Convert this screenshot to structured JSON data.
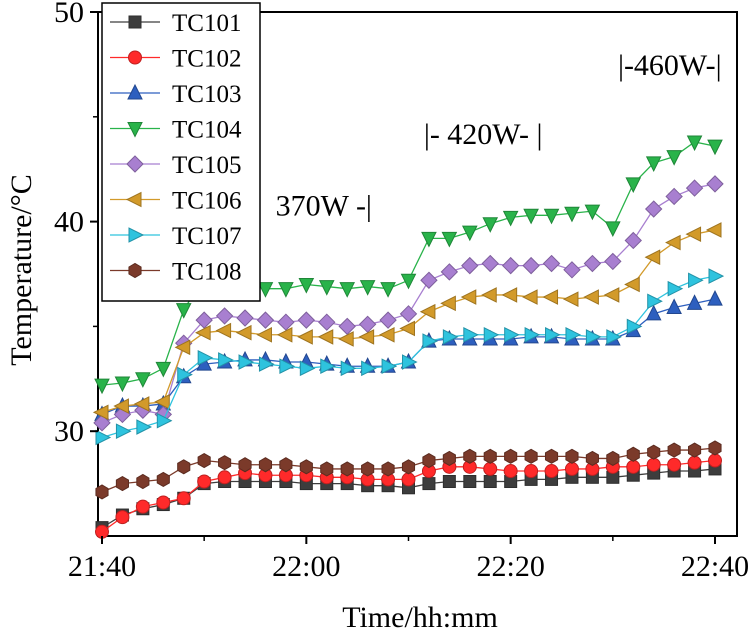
{
  "chart_data": {
    "type": "line",
    "title": "",
    "xlabel": "Time/hh:mm",
    "ylabel": "Temperature/°C",
    "xlim": [
      0,
      60
    ],
    "ylim": [
      25,
      50
    ],
    "x_ticks": [
      0,
      20,
      40,
      60
    ],
    "x_tick_labels": [
      "21:40",
      "22:00",
      "22:20",
      "22:40"
    ],
    "y_ticks": [
      30,
      40,
      50
    ],
    "y_tick_labels": [
      "30",
      "40",
      "50"
    ],
    "grid": false,
    "legend_position": "top-left",
    "x": [
      0,
      2,
      4,
      6,
      8,
      10,
      12,
      14,
      16,
      18,
      20,
      22,
      24,
      26,
      28,
      30,
      32,
      34,
      36,
      38,
      40,
      42,
      44,
      46,
      48,
      50,
      52,
      54,
      56,
      58,
      60
    ],
    "series": [
      {
        "name": "TC101",
        "marker": "square",
        "color": "#3d3d3d",
        "values": [
          25.4,
          26.0,
          26.3,
          26.5,
          26.8,
          27.5,
          27.6,
          27.6,
          27.6,
          27.6,
          27.5,
          27.5,
          27.5,
          27.4,
          27.4,
          27.3,
          27.5,
          27.6,
          27.6,
          27.6,
          27.6,
          27.7,
          27.7,
          27.8,
          27.8,
          27.8,
          27.9,
          28.0,
          28.1,
          28.1,
          28.2
        ]
      },
      {
        "name": "TC102",
        "marker": "circle",
        "color": "#ff2a2a",
        "values": [
          25.2,
          25.9,
          26.4,
          26.6,
          26.8,
          27.6,
          27.8,
          28.0,
          27.9,
          27.9,
          27.9,
          27.8,
          27.8,
          27.7,
          27.7,
          27.7,
          28.1,
          28.3,
          28.3,
          28.2,
          28.1,
          28.1,
          28.1,
          28.2,
          28.2,
          28.3,
          28.3,
          28.4,
          28.4,
          28.5,
          28.6
        ]
      },
      {
        "name": "TC103",
        "marker": "triangle-up",
        "color": "#2d5fbf",
        "values": [
          30.8,
          31.2,
          31.2,
          31.3,
          32.6,
          33.2,
          33.3,
          33.4,
          33.4,
          33.3,
          33.3,
          33.2,
          33.1,
          33.1,
          33.1,
          33.3,
          34.3,
          34.4,
          34.4,
          34.4,
          34.4,
          34.5,
          34.5,
          34.4,
          34.4,
          34.4,
          34.8,
          35.6,
          35.9,
          36.1,
          36.3
        ]
      },
      {
        "name": "TC104",
        "marker": "triangle-down",
        "color": "#29b34a",
        "values": [
          32.2,
          32.3,
          32.5,
          33.0,
          35.8,
          37.3,
          37.2,
          37.0,
          36.8,
          36.8,
          37.0,
          36.9,
          36.8,
          36.9,
          36.8,
          37.2,
          39.2,
          39.2,
          39.5,
          39.9,
          40.2,
          40.3,
          40.3,
          40.4,
          40.5,
          39.7,
          41.8,
          42.8,
          43.1,
          43.8,
          43.6
        ]
      },
      {
        "name": "TC105",
        "marker": "diamond",
        "color": "#a87fd0",
        "values": [
          30.4,
          30.8,
          31.0,
          30.8,
          34.2,
          35.3,
          35.5,
          35.4,
          35.3,
          35.2,
          35.3,
          35.2,
          35.0,
          35.1,
          35.3,
          35.6,
          37.2,
          37.6,
          37.9,
          38.0,
          37.9,
          37.9,
          38.0,
          37.7,
          38.0,
          38.1,
          39.1,
          40.6,
          41.2,
          41.6,
          41.8
        ]
      },
      {
        "name": "TC106",
        "marker": "triangle-left",
        "color": "#d29a2a",
        "values": [
          30.9,
          31.2,
          31.3,
          31.4,
          34.0,
          34.7,
          34.8,
          34.7,
          34.6,
          34.6,
          34.5,
          34.5,
          34.4,
          34.5,
          34.6,
          34.9,
          35.7,
          36.1,
          36.4,
          36.5,
          36.5,
          36.4,
          36.4,
          36.3,
          36.4,
          36.5,
          37.0,
          38.3,
          39.0,
          39.4,
          39.6
        ]
      },
      {
        "name": "TC107",
        "marker": "triangle-right",
        "color": "#2ec3de",
        "values": [
          29.7,
          30.0,
          30.2,
          30.5,
          32.7,
          33.5,
          33.4,
          33.3,
          33.2,
          33.1,
          33.0,
          33.1,
          33.0,
          33.0,
          33.1,
          33.3,
          34.3,
          34.5,
          34.6,
          34.6,
          34.6,
          34.6,
          34.6,
          34.6,
          34.5,
          34.5,
          35.0,
          36.2,
          36.8,
          37.2,
          37.4
        ]
      },
      {
        "name": "TC108",
        "marker": "hexagon",
        "color": "#7b3a2a",
        "values": [
          27.1,
          27.5,
          27.6,
          27.7,
          28.3,
          28.6,
          28.5,
          28.4,
          28.4,
          28.4,
          28.3,
          28.2,
          28.2,
          28.2,
          28.2,
          28.3,
          28.6,
          28.7,
          28.8,
          28.8,
          28.8,
          28.8,
          28.8,
          28.8,
          28.7,
          28.7,
          28.9,
          29.0,
          29.1,
          29.1,
          29.2
        ]
      }
    ],
    "annotations": [
      {
        "text": "370W -|",
        "x": 17,
        "y": 40.3
      },
      {
        "text": "|- 420W- |",
        "x": 31.5,
        "y": 43.7
      },
      {
        "text": "|-460W-|",
        "x": 50.5,
        "y": 47.0
      }
    ]
  }
}
